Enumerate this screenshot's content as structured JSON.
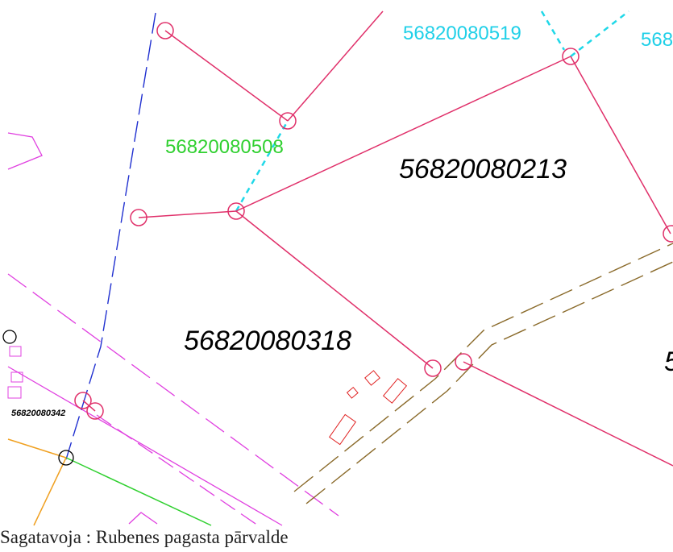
{
  "map_labels": [
    "56820080519",
    "568",
    "56820080508",
    "56820080213",
    "56820080318",
    "5",
    "56820080342"
  ],
  "caption": "Sagatavoja : Rubenes pagasta pārvalde"
}
